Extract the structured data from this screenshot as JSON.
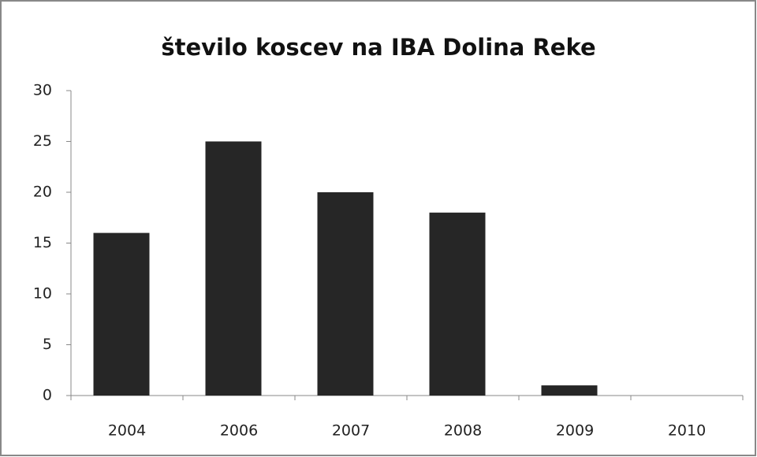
{
  "chart_data": {
    "type": "bar",
    "title": "število koscev na IBA Dolina Reke",
    "categories": [
      "2004",
      "2006",
      "2007",
      "2008",
      "2009",
      "2010"
    ],
    "values": [
      16,
      25,
      20,
      18,
      1,
      0
    ],
    "color": "#262626",
    "ylim": [
      0,
      30
    ],
    "yticks": [
      0,
      5,
      10,
      15,
      20,
      25,
      30
    ],
    "grid": false
  }
}
